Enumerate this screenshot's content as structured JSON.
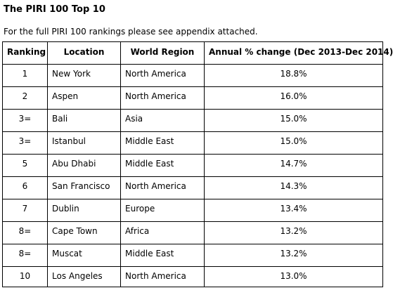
{
  "title": "The PIRI 100 Top 10",
  "subtitle": "For the full PIRI 100 rankings please see appendix attached.",
  "table": {
    "headers": [
      "Ranking",
      "Location",
      "World Region",
      "Annual % change (Dec 2013-Dec 2014)"
    ],
    "rows": [
      {
        "ranking": "1",
        "location": "New York",
        "region": "North America",
        "change": "18.8%"
      },
      {
        "ranking": "2",
        "location": "Aspen",
        "region": "North America",
        "change": "16.0%"
      },
      {
        "ranking": "3=",
        "location": "Bali",
        "region": "Asia",
        "change": "15.0%"
      },
      {
        "ranking": "3=",
        "location": "Istanbul",
        "region": "Middle East",
        "change": "15.0%"
      },
      {
        "ranking": "5",
        "location": "Abu Dhabi",
        "region": "Middle East",
        "change": "14.7%"
      },
      {
        "ranking": "6",
        "location": "San Francisco",
        "region": "North America",
        "change": "14.3%"
      },
      {
        "ranking": "7",
        "location": "Dublin",
        "region": "Europe",
        "change": "13.4%"
      },
      {
        "ranking": "8=",
        "location": "Cape Town",
        "region": "Africa",
        "change": "13.2%"
      },
      {
        "ranking": "8=",
        "location": "Muscat",
        "region": "Middle East",
        "change": "13.2%"
      },
      {
        "ranking": "10",
        "location": "Los Angeles",
        "region": "North America",
        "change": "13.0%"
      }
    ]
  }
}
